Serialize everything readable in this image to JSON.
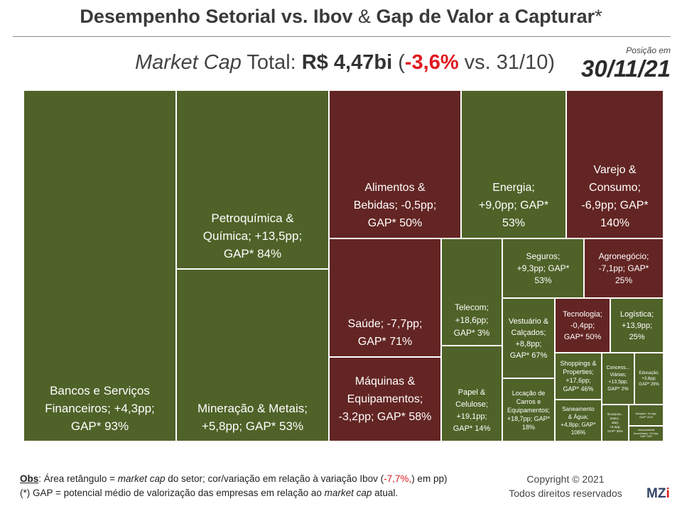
{
  "header": {
    "title_part1": "Desempenho Setorial vs. Ibov",
    "title_amp": "&",
    "title_part2": "Gap de Valor a Capturar",
    "title_asterisk": "*",
    "subtitle_italic": "Market Cap",
    "subtitle_total": " Total: ",
    "subtitle_value": "R$ 4,47bi",
    "subtitle_open": "  (",
    "subtitle_change": "-3,6%",
    "subtitle_rest": " vs. 31/10)",
    "position_label": "Posição em",
    "position_date": "30/11/21"
  },
  "colors": {
    "outperform": "#4f6228",
    "underperform": "#632523",
    "accent_red": "#e0191f"
  },
  "chart_data": {
    "type": "treemap",
    "title": "Desempenho Setorial vs. Ibov & Gap de Valor a Capturar*",
    "ibov_change_pct": -7.7,
    "total_market_cap": "R$ 4,47bi",
    "total_change_pct": -3.6,
    "items": [
      {
        "label": "Bancos e Serviços Financeiros; +4,3pp; GAP* 93%",
        "sector": "Bancos e Serviços Financeiros",
        "relative_pp": 4.3,
        "gap_pct": 93,
        "color": "#4f6228"
      },
      {
        "label": "Petroquímica & Química; +13,5pp; GAP* 84%",
        "sector": "Petroquímica & Química",
        "relative_pp": 13.5,
        "gap_pct": 84,
        "color": "#4f6228"
      },
      {
        "label": "Mineração & Metais; +5,8pp; GAP* 53%",
        "sector": "Mineração & Metais",
        "relative_pp": 5.8,
        "gap_pct": 53,
        "color": "#4f6228"
      },
      {
        "label": "Alimentos & Bebidas; -0,5pp; GAP* 50%",
        "sector": "Alimentos & Bebidas",
        "relative_pp": -0.5,
        "gap_pct": 50,
        "color": "#632523"
      },
      {
        "label": "Energia; +9,0pp; GAP* 53%",
        "sector": "Energia",
        "relative_pp": 9.0,
        "gap_pct": 53,
        "color": "#4f6228"
      },
      {
        "label": "Varejo & Consumo; -6,9pp; GAP* 140%",
        "sector": "Varejo & Consumo",
        "relative_pp": -6.9,
        "gap_pct": 140,
        "color": "#632523"
      },
      {
        "label": "Saúde; -7,7pp; GAP* 71%",
        "sector": "Saúde",
        "relative_pp": -7.7,
        "gap_pct": 71,
        "color": "#632523"
      },
      {
        "label": "Máquinas & Equipamentos; -3,2pp; GAP* 58%",
        "sector": "Máquinas & Equipamentos",
        "relative_pp": -3.2,
        "gap_pct": 58,
        "color": "#632523"
      },
      {
        "label": "Telecom; +18,6pp; GAP* 3%",
        "sector": "Telecom",
        "relative_pp": 18.6,
        "gap_pct": 3,
        "color": "#4f6228"
      },
      {
        "label": "Papel & Celulose; +19,1pp; GAP* 14%",
        "sector": "Papel & Celulose",
        "relative_pp": 19.1,
        "gap_pct": 14,
        "color": "#4f6228"
      },
      {
        "label": "Seguros; +9,3pp; GAP* 53%",
        "sector": "Seguros",
        "relative_pp": 9.3,
        "gap_pct": 53,
        "color": "#4f6228"
      },
      {
        "label": "Agronegócio; -7,1pp; GAP* 25%",
        "sector": "Agronegócio",
        "relative_pp": -7.1,
        "gap_pct": 25,
        "color": "#632523"
      },
      {
        "label": "Vestuário & Calçados; +8,8pp; GAP* 67%",
        "sector": "Vestuário & Calçados",
        "relative_pp": 8.8,
        "gap_pct": 67,
        "color": "#4f6228"
      },
      {
        "label": "Tecnologia; -0,4pp; GAP* 50%",
        "sector": "Tecnologia",
        "relative_pp": -0.4,
        "gap_pct": 50,
        "color": "#632523"
      },
      {
        "label": "Logística; +13,9pp; 25%",
        "sector": "Logística",
        "relative_pp": 13.9,
        "gap_pct": 25,
        "color": "#4f6228"
      },
      {
        "label": "Shoppings & Properties; +17,6pp; GAP* 46%",
        "sector": "Shoppings & Properties",
        "relative_pp": 17.6,
        "gap_pct": 46,
        "color": "#4f6228"
      },
      {
        "label": "Concess... Viárias; +13,5pp; GAP* 2%",
        "sector": "Concessões Viárias",
        "relative_pp": 13.5,
        "gap_pct": 2,
        "color": "#4f6228"
      },
      {
        "label": "Educação; +3,6pp; GAP* 29%",
        "sector": "Educação",
        "relative_pp": 3.6,
        "gap_pct": 29,
        "color": "#4f6228"
      },
      {
        "label": "Locação de Carros e Equipamentos; +18,7pp; GAP* 18%",
        "sector": "Locação de Carros e Equipamentos",
        "relative_pp": 18.7,
        "gap_pct": 18,
        "color": "#4f6228"
      },
      {
        "label": "Saneamento & Água; +4,8pp; GAP* 106%",
        "sector": "Saneamento & Água",
        "relative_pp": 4.8,
        "gap_pct": 106,
        "color": "#4f6228"
      },
      {
        "label": "Incorpora... (resid... alta); +8,4pp; GAP* 28%",
        "sector": "Incorporadoras (residencial alta)",
        "relative_pp": 8.4,
        "gap_pct": 28,
        "color": "#4f6228"
      },
      {
        "label": "Aviação; +6,4pp; GAP* 41%",
        "sector": "Aviação",
        "relative_pp": 6.4,
        "gap_pct": 41,
        "color": "#4f6228"
      },
      {
        "label": "Incorporadoras (econômica); +11,2pp; GAP* 16%",
        "sector": "Incorporadoras (econômica)",
        "relative_pp": 11.2,
        "gap_pct": 16,
        "color": "#4f6228"
      }
    ]
  },
  "footer": {
    "obs_label": "Obs",
    "obs_text1": ": Área retângulo = ",
    "obs_italic1": "market cap",
    "obs_text2": " do setor; cor/variação  em relação à variação Ibov (",
    "obs_ibov": "-7,7%,",
    "obs_text3": ") em pp)",
    "gap_text1": "(*) GAP = potencial médio de valorização das empresas em relação ao ",
    "gap_italic": "market cap",
    "gap_text2": " atual.",
    "copyright": "Copyright © 2021",
    "rights": "Todos direitos reservados",
    "logo_mz": "MZ",
    "logo_i": "i"
  }
}
